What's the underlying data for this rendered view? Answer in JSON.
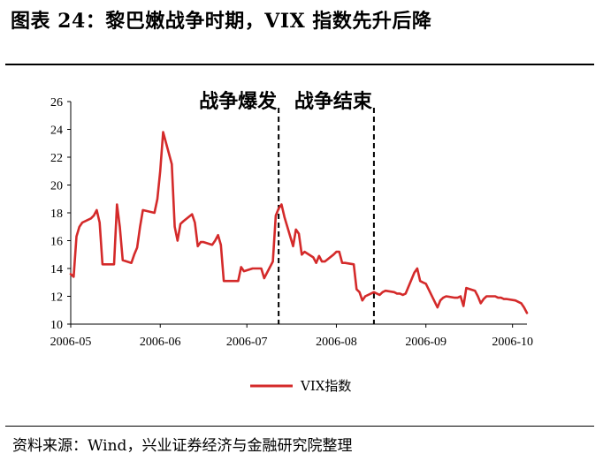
{
  "title": "图表 24：黎巴嫩战争时期，VIX 指数先升后降",
  "source": "资料来源：Wind，兴业证券经济与金融研究院整理",
  "chart_data": {
    "type": "line",
    "x_tick_labels": [
      "2006-05",
      "2006-06",
      "2006-07",
      "2006-08",
      "2006-09",
      "2006-10"
    ],
    "y_ticks": [
      10,
      12,
      14,
      16,
      18,
      20,
      22,
      24,
      26
    ],
    "ylim": [
      10,
      26
    ],
    "grid": false,
    "legend_position": "bottom-center",
    "annotations": [
      {
        "text": "战争爆发",
        "x": "2006-07-12"
      },
      {
        "text": "战争结束",
        "x": "2006-08-14"
      }
    ],
    "series": [
      {
        "name": "VIX指数",
        "color": "#d42a2a",
        "x": [
          "2006-05-01",
          "2006-05-02",
          "2006-05-03",
          "2006-05-04",
          "2006-05-05",
          "2006-05-08",
          "2006-05-09",
          "2006-05-10",
          "2006-05-11",
          "2006-05-12",
          "2006-05-15",
          "2006-05-16",
          "2006-05-17",
          "2006-05-18",
          "2006-05-19",
          "2006-05-22",
          "2006-05-23",
          "2006-05-24",
          "2006-05-25",
          "2006-05-26",
          "2006-05-30",
          "2006-05-31",
          "2006-06-01",
          "2006-06-02",
          "2006-06-05",
          "2006-06-06",
          "2006-06-07",
          "2006-06-08",
          "2006-06-09",
          "2006-06-12",
          "2006-06-13",
          "2006-06-14",
          "2006-06-15",
          "2006-06-16",
          "2006-06-19",
          "2006-06-20",
          "2006-06-21",
          "2006-06-22",
          "2006-06-23",
          "2006-06-26",
          "2006-06-27",
          "2006-06-28",
          "2006-06-29",
          "2006-06-30",
          "2006-07-03",
          "2006-07-05",
          "2006-07-06",
          "2006-07-07",
          "2006-07-10",
          "2006-07-11",
          "2006-07-12",
          "2006-07-13",
          "2006-07-14",
          "2006-07-17",
          "2006-07-18",
          "2006-07-19",
          "2006-07-20",
          "2006-07-21",
          "2006-07-24",
          "2006-07-25",
          "2006-07-26",
          "2006-07-27",
          "2006-07-28",
          "2006-07-31",
          "2006-08-01",
          "2006-08-02",
          "2006-08-03",
          "2006-08-04",
          "2006-08-07",
          "2006-08-08",
          "2006-08-09",
          "2006-08-10",
          "2006-08-11",
          "2006-08-14",
          "2006-08-15",
          "2006-08-16",
          "2006-08-17",
          "2006-08-18",
          "2006-08-21",
          "2006-08-22",
          "2006-08-23",
          "2006-08-24",
          "2006-08-25",
          "2006-08-28",
          "2006-08-29",
          "2006-08-30",
          "2006-08-31",
          "2006-09-01",
          "2006-09-05",
          "2006-09-06",
          "2006-09-07",
          "2006-09-08",
          "2006-09-11",
          "2006-09-12",
          "2006-09-13",
          "2006-09-14",
          "2006-09-15",
          "2006-09-18",
          "2006-09-19",
          "2006-09-20",
          "2006-09-21",
          "2006-09-22",
          "2006-09-25",
          "2006-09-26",
          "2006-09-27",
          "2006-09-28",
          "2006-09-29",
          "2006-10-02",
          "2006-10-03",
          "2006-10-04",
          "2006-10-05",
          "2006-10-06"
        ],
        "values": [
          13.6,
          13.4,
          16.3,
          17.0,
          17.3,
          17.6,
          17.8,
          18.2,
          17.3,
          14.3,
          14.3,
          14.3,
          18.6,
          17.0,
          14.6,
          14.4,
          15.0,
          15.5,
          17.0,
          18.2,
          18.0,
          19.0,
          21.0,
          23.8,
          21.5,
          17.0,
          16.0,
          17.2,
          17.4,
          17.9,
          17.3,
          15.6,
          15.9,
          15.9,
          15.7,
          16.0,
          16.4,
          15.7,
          13.1,
          13.1,
          13.1,
          13.1,
          14.1,
          13.8,
          14.0,
          14.0,
          14.0,
          13.3,
          14.5,
          17.8,
          18.3,
          18.6,
          17.7,
          15.6,
          16.8,
          16.5,
          15.0,
          15.2,
          14.8,
          14.4,
          14.9,
          14.5,
          14.5,
          15.0,
          15.2,
          15.2,
          14.4,
          14.4,
          14.3,
          12.5,
          12.3,
          11.7,
          12.0,
          12.3,
          12.2,
          12.1,
          12.3,
          12.4,
          12.3,
          12.2,
          12.2,
          12.1,
          12.2,
          13.7,
          14.0,
          13.1,
          13.0,
          12.9,
          11.2,
          11.7,
          11.9,
          12.0,
          11.9,
          11.9,
          12.0,
          11.3,
          12.6,
          12.4,
          12.0,
          11.5,
          11.8,
          12.0,
          12.0,
          11.9,
          11.9,
          11.8,
          11.8,
          11.7,
          11.6,
          11.5,
          11.2,
          10.8
        ]
      }
    ]
  }
}
